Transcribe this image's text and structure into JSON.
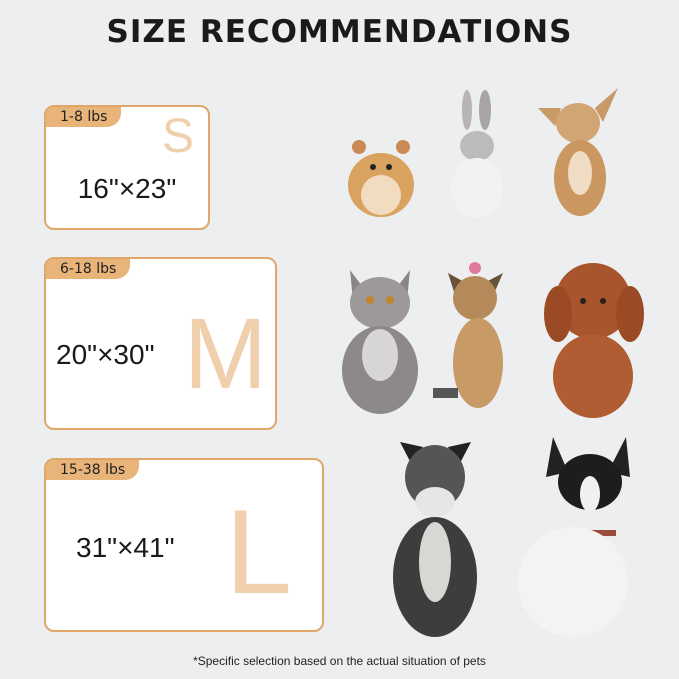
{
  "title": "SIZE RECOMMENDATIONS",
  "colors": {
    "background": "#eceef0",
    "accent": "#dfa767",
    "tag": "#e8b47a",
    "watermark_letter": "#f4dcc3"
  },
  "sizes": [
    {
      "letter": "S",
      "weight": "1-8 lbs",
      "dimensions": "16\"×23\"",
      "pets": [
        "hamster",
        "rabbit",
        "chihuahua"
      ]
    },
    {
      "letter": "M",
      "weight": "6-18 lbs",
      "dimensions": "20\"×30\"",
      "pets": [
        "cat",
        "yorkshire-terrier",
        "poodle"
      ]
    },
    {
      "letter": "L",
      "weight": "15-38 lbs",
      "dimensions": "31\"×41\"",
      "pets": [
        "schnauzer",
        "french-bulldog"
      ]
    }
  ],
  "footnote": "*Specific selection based on the actual situation of pets"
}
